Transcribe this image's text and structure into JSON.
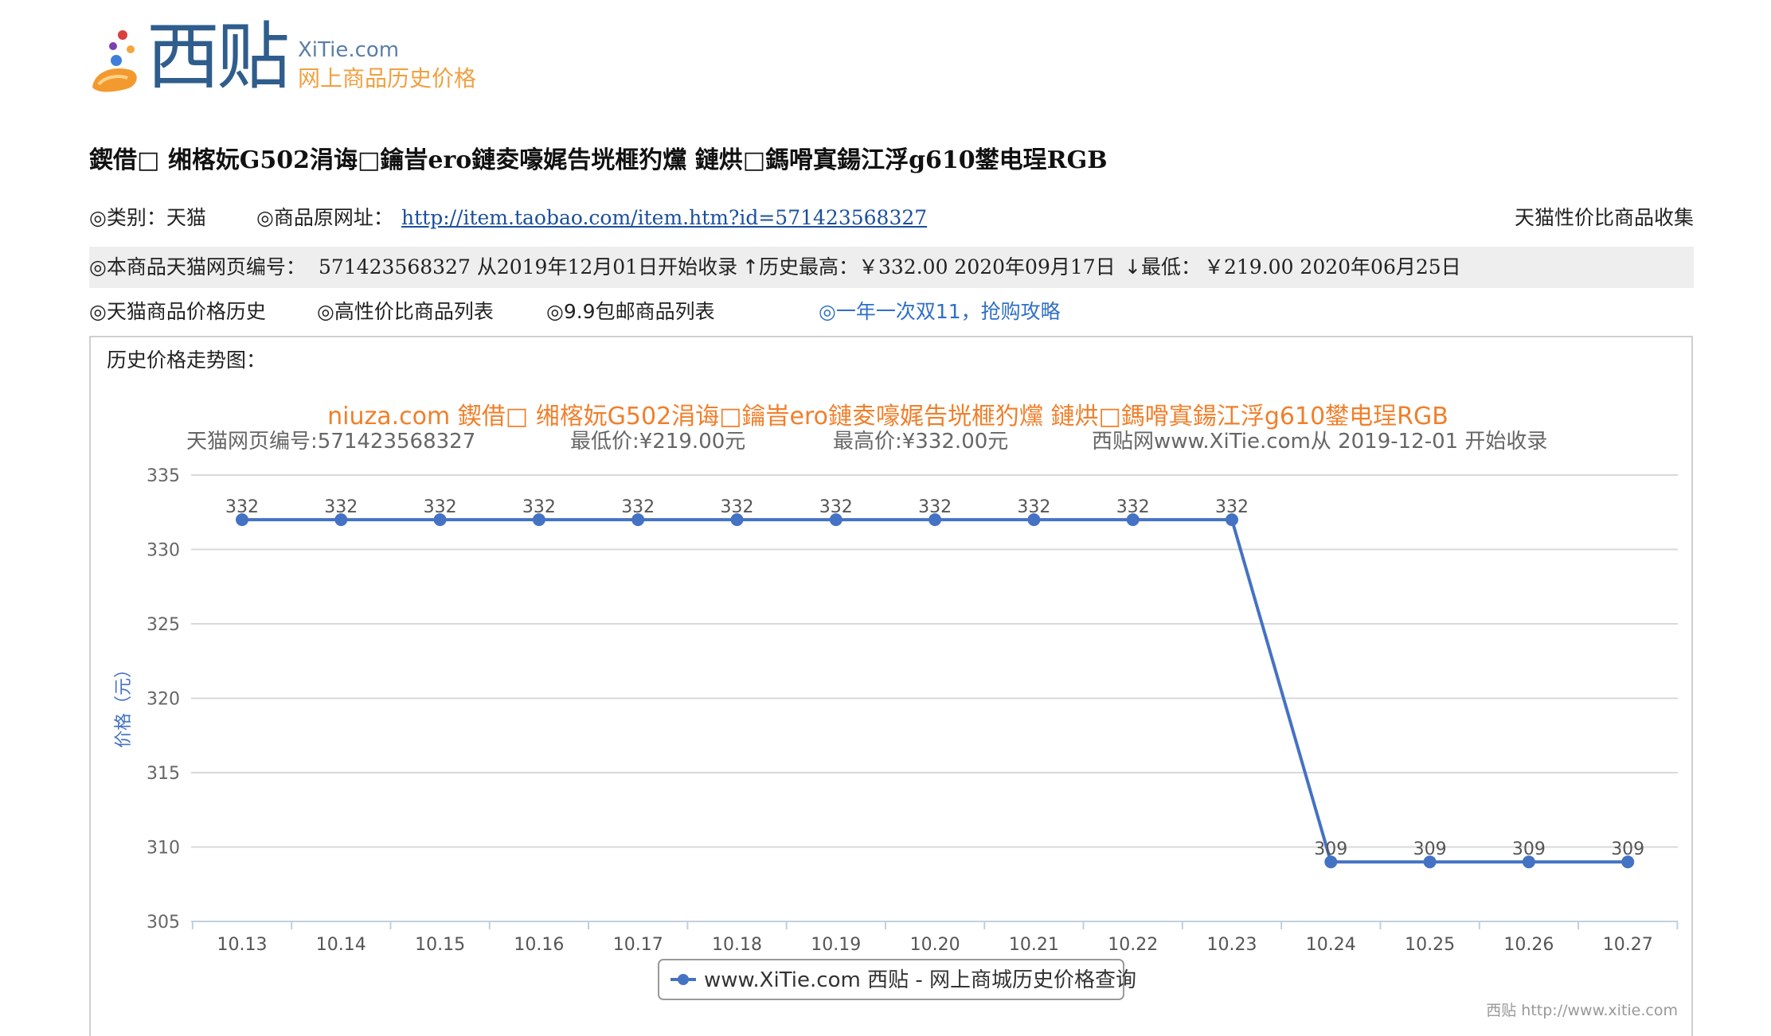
{
  "logo": {
    "brand_cn": "西贴",
    "brand_en": "XiTie.com",
    "tagline": "网上商品历史价格"
  },
  "product": {
    "title": "鍥借□ 缃楁妧G502涓诲□鑰旹ero鏈夌嚎娓告垙榧犳爣 鏈烘□鎷嗗寘鍚江浮g610鐢电珵RGB"
  },
  "info": {
    "category": "◎类别：天猫",
    "source_label": "◎商品原网址：",
    "source_url": "http://item.taobao.com/item.htm?id=571423568327",
    "collection": "天猫性价比商品收集",
    "tmall_id_label": "◎本商品天猫网页编号：",
    "tmall_id_value": "571423568327 从2019年12月01日开始收录",
    "highest_label": "↑历史最高：",
    "highest_value": "￥332.00 2020年09月17日",
    "lowest_label": "↓最低：",
    "lowest_value": "￥219.00 2020年06月25日"
  },
  "nav": {
    "price_history": "◎天猫商品价格历史",
    "value_list": "◎高性价比商品列表",
    "free_shipping": "◎9.9包邮商品列表",
    "promo": "◎一年一次双11，抢购攻略"
  },
  "panel": {
    "label": "历史价格走势图："
  },
  "chart_data": {
    "type": "line",
    "title": "niuza.com 鍥借□ 缃楁妧G502涓诲□鑰旹ero鏈夌嚎娓告垙榧犳爣 鏈烘□鎷嗗寘鍚江浮g610鐢电珵RGB",
    "subtitle": [
      "天猫网页编号:571423568327",
      "最低价:¥219.00元",
      "最高价:¥332.00元",
      "西贴网www.XiTie.com从 2019-12-01 开始收录"
    ],
    "xlabel": "",
    "ylabel": "价格（元）",
    "ylim": [
      305,
      335
    ],
    "yticks": [
      305,
      310,
      315,
      320,
      325,
      330,
      335
    ],
    "grid": true,
    "legend_position": "bottom-center",
    "categories": [
      "10.13",
      "10.14",
      "10.15",
      "10.16",
      "10.17",
      "10.18",
      "10.19",
      "10.20",
      "10.21",
      "10.22",
      "10.23",
      "10.24",
      "10.25",
      "10.26",
      "10.27"
    ],
    "series": [
      {
        "name": "www.XiTie.com 西贴 - 网上商城历史价格查询",
        "color": "#4472c4",
        "values": [
          332,
          332,
          332,
          332,
          332,
          332,
          332,
          332,
          332,
          332,
          332,
          309,
          309,
          309,
          309
        ]
      }
    ],
    "credit": "西贴 http://www.xitie.com",
    "title_color": "#f07f2a"
  }
}
